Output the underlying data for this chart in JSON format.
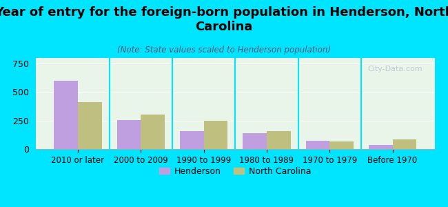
{
  "title": "Year of entry for the foreign-born population in Henderson, North\nCarolina",
  "subtitle": "(Note: State values scaled to Henderson population)",
  "categories": [
    "2010 or later",
    "2000 to 2009",
    "1990 to 1999",
    "1980 to 1989",
    "1970 to 1979",
    "Before 1970"
  ],
  "henderson_values": [
    600,
    252,
    155,
    140,
    75,
    35
  ],
  "nc_values": [
    415,
    305,
    248,
    155,
    65,
    85
  ],
  "henderson_color": "#bf9fdf",
  "nc_color": "#bfbf7f",
  "background_outer": "#00e5ff",
  "background_inner_top": "#e8f5e8",
  "background_inner_bottom": "#f5f5e8",
  "ylim": [
    0,
    800
  ],
  "yticks": [
    0,
    250,
    500,
    750
  ],
  "watermark": "City-Data.com",
  "legend_henderson": "Henderson",
  "legend_nc": "North Carolina",
  "title_fontsize": 13,
  "subtitle_fontsize": 8.5,
  "bar_width": 0.38
}
